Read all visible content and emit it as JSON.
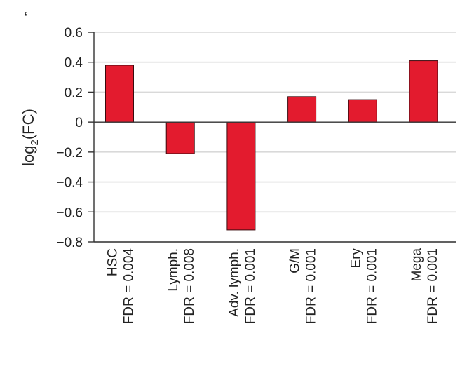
{
  "corner_mark": "ʻ",
  "chart_data": {
    "type": "bar",
    "categories": [
      [
        "HSC",
        "FDR = 0.004"
      ],
      [
        "Lymph.",
        "FDR = 0.008"
      ],
      [
        "Adv. lymph.",
        "FDR = 0.001"
      ],
      [
        "G/M",
        "FDR = 0.001"
      ],
      [
        "Ery",
        "FDR = 0.001"
      ],
      [
        "Mega",
        "FDR = 0.001"
      ]
    ],
    "values": [
      0.38,
      -0.21,
      -0.72,
      0.17,
      0.15,
      0.41
    ],
    "ylabel_main": "log",
    "ylabel_sub": "2",
    "ylabel_rest": "(FC)",
    "ylim": [
      -0.8,
      0.6
    ],
    "yticks": [
      0.6,
      0.4,
      0.2,
      0,
      -0.2,
      -0.4,
      -0.6,
      -0.8
    ],
    "ytick_labels": [
      "0.6",
      "0.4",
      "0.2",
      "0",
      "−0.2",
      "−0.4",
      "−0.6",
      "−0.8"
    ],
    "grid": true,
    "bar_color": "#e31b2e",
    "bar_edge_color": "#3a0a0e",
    "grid_color": "#d9d9d9",
    "axis_color": "#333333"
  }
}
